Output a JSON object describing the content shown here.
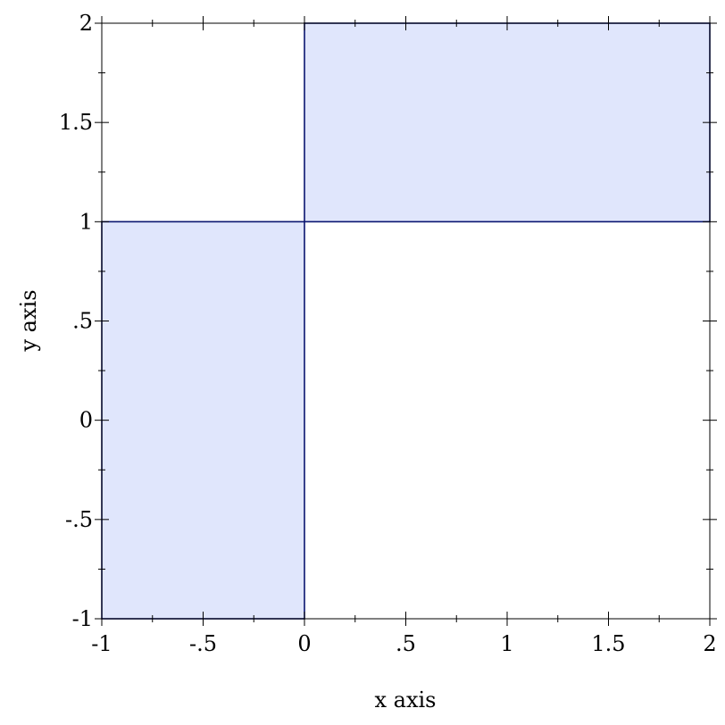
{
  "chart_data": {
    "type": "area",
    "xlabel": "x axis",
    "ylabel": "y axis",
    "xlim": [
      -1,
      2
    ],
    "ylim": [
      -1,
      2
    ],
    "grid": false,
    "x_ticks": [
      {
        "value": -1,
        "label": "-1"
      },
      {
        "value": -0.5,
        "label": "-.5"
      },
      {
        "value": 0,
        "label": "0"
      },
      {
        "value": 0.5,
        "label": ".5"
      },
      {
        "value": 1,
        "label": "1"
      },
      {
        "value": 1.5,
        "label": "1.5"
      },
      {
        "value": 2,
        "label": "2"
      }
    ],
    "y_ticks": [
      {
        "value": -1,
        "label": "-1"
      },
      {
        "value": -0.5,
        "label": "-.5"
      },
      {
        "value": 0,
        "label": "0"
      },
      {
        "value": 0.5,
        "label": ".5"
      },
      {
        "value": 1,
        "label": "1"
      },
      {
        "value": 1.5,
        "label": "1.5"
      },
      {
        "value": 2,
        "label": "2"
      }
    ],
    "rectangles": [
      {
        "x": [
          -1,
          0
        ],
        "y": [
          -1,
          1
        ]
      },
      {
        "x": [
          0,
          2
        ],
        "y": [
          1,
          2
        ]
      }
    ],
    "colors": {
      "fill": "#e0e6fc",
      "stroke": "#0a1570",
      "axis": "#000000"
    }
  }
}
